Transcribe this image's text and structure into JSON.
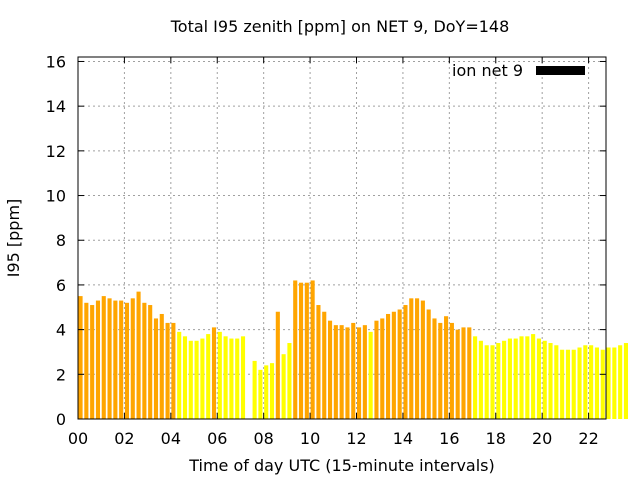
{
  "chart_data": {
    "type": "bar",
    "title": "Total I95 zenith [ppm] on NET 9, DoY=148",
    "xlabel": "Time of day UTC (15-minute intervals)",
    "ylabel": "I95 [ppm]",
    "xlim": [
      0,
      22.75
    ],
    "ylim": [
      0,
      16.2
    ],
    "x_ticks": [
      "00",
      "02",
      "04",
      "06",
      "08",
      "10",
      "12",
      "14",
      "16",
      "18",
      "20",
      "22"
    ],
    "y_ticks": [
      "0",
      "2",
      "4",
      "6",
      "8",
      "10",
      "12",
      "14",
      "16"
    ],
    "grid": true,
    "legend_position": "top-right",
    "series": [
      {
        "name": "ion net 9",
        "legend_color": "#000000",
        "interval_hours": 0.25,
        "colors": {
          "orange": "#ffa500",
          "yellow": "#ffff00"
        },
        "values": [
          5.5,
          5.2,
          5.1,
          5.3,
          5.5,
          5.4,
          5.3,
          5.3,
          5.2,
          5.4,
          5.7,
          5.2,
          5.1,
          4.5,
          4.7,
          4.3,
          4.3,
          3.9,
          3.7,
          3.5,
          3.5,
          3.6,
          3.8,
          4.1,
          3.9,
          3.7,
          3.6,
          3.6,
          3.7,
          0,
          2.6,
          2.2,
          2.4,
          2.5,
          4.8,
          2.9,
          3.4,
          6.2,
          6.1,
          6.1,
          6.2,
          5.1,
          4.8,
          4.4,
          4.2,
          4.2,
          4.1,
          4.3,
          4.1,
          4.2,
          3.9,
          4.4,
          4.5,
          4.7,
          4.8,
          4.9,
          5.1,
          5.4,
          5.4,
          5.3,
          4.9,
          4.5,
          4.3,
          4.6,
          4.3,
          4.0,
          4.1,
          4.1,
          3.7,
          3.5,
          3.3,
          3.3,
          3.4,
          3.5,
          3.6,
          3.6,
          3.7,
          3.7,
          3.8,
          3.6,
          3.5,
          3.4,
          3.3,
          3.1,
          3.1,
          3.1,
          3.2,
          3.3,
          3.3,
          3.2,
          3.1,
          3.2,
          3.2,
          3.3,
          3.4
        ],
        "bar_colors": [
          "orange",
          "orange",
          "orange",
          "orange",
          "orange",
          "orange",
          "orange",
          "orange",
          "orange",
          "orange",
          "orange",
          "orange",
          "orange",
          "orange",
          "orange",
          "orange",
          "orange",
          "yellow",
          "yellow",
          "yellow",
          "yellow",
          "yellow",
          "yellow",
          "orange",
          "yellow",
          "yellow",
          "yellow",
          "yellow",
          "yellow",
          "yellow",
          "yellow",
          "yellow",
          "yellow",
          "yellow",
          "orange",
          "yellow",
          "yellow",
          "orange",
          "orange",
          "orange",
          "orange",
          "orange",
          "orange",
          "orange",
          "orange",
          "orange",
          "orange",
          "orange",
          "orange",
          "orange",
          "yellow",
          "orange",
          "orange",
          "orange",
          "orange",
          "orange",
          "orange",
          "orange",
          "orange",
          "orange",
          "orange",
          "orange",
          "orange",
          "orange",
          "orange",
          "orange",
          "orange",
          "orange",
          "yellow",
          "yellow",
          "yellow",
          "yellow",
          "yellow",
          "yellow",
          "yellow",
          "yellow",
          "yellow",
          "yellow",
          "yellow",
          "yellow",
          "yellow",
          "yellow",
          "yellow",
          "yellow",
          "yellow",
          "yellow",
          "yellow",
          "yellow",
          "yellow",
          "yellow",
          "yellow",
          "yellow",
          "yellow",
          "yellow",
          "yellow"
        ]
      }
    ]
  }
}
